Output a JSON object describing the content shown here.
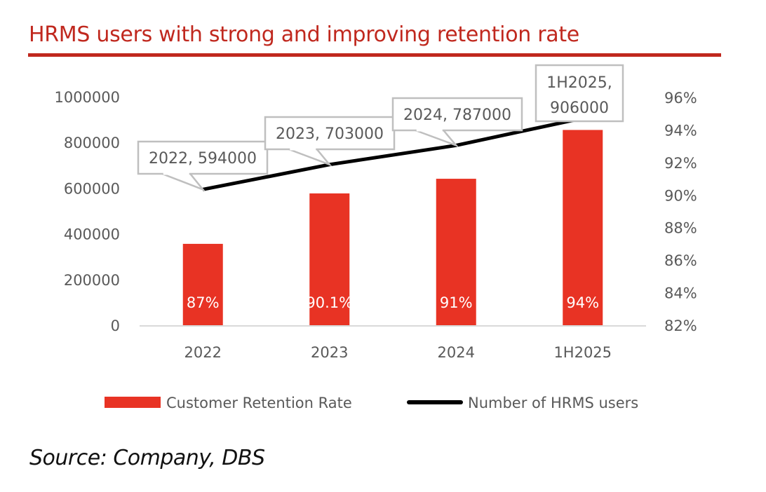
{
  "title": "HRMS users with strong and improving retention rate",
  "source": "Source: Company, DBS",
  "colors": {
    "title": "#c0281e",
    "bar": "#e83324",
    "line": "#000000",
    "callout_border": "#bfbfbf",
    "axis_text": "#595959",
    "axis_line": "#d9d9d9"
  },
  "chart_data": {
    "type": "bar+line",
    "title": "HRMS users with strong and improving retention rate",
    "categories": [
      "2022",
      "2023",
      "2024",
      "1H2025"
    ],
    "series": [
      {
        "name": "Customer Retention Rate",
        "type": "bar",
        "axis": "right",
        "values": [
          87,
          90.1,
          91,
          94
        ],
        "labels": [
          "87%",
          "90.1%",
          "91%",
          "94%"
        ]
      },
      {
        "name": "Number of HRMS users",
        "type": "line",
        "axis": "left",
        "values": [
          594000,
          703000,
          787000,
          906000
        ],
        "labels": [
          "2022, 594000",
          "2023, 703000",
          "2024, 787000",
          "1H2025, 906000"
        ]
      }
    ],
    "left_axis": {
      "min": 0,
      "max": 1000000,
      "ticks": [
        "0",
        "200000",
        "400000",
        "600000",
        "800000",
        "1000000"
      ]
    },
    "right_axis": {
      "min": 82,
      "max": 96,
      "ticks": [
        "82%",
        "84%",
        "86%",
        "88%",
        "90%",
        "92%",
        "94%",
        "96%"
      ]
    },
    "xlabel": "",
    "ylabel": "",
    "grid": false,
    "legend": {
      "position": "bottom",
      "entries": [
        "Customer Retention Rate",
        "Number of HRMS users"
      ]
    }
  }
}
